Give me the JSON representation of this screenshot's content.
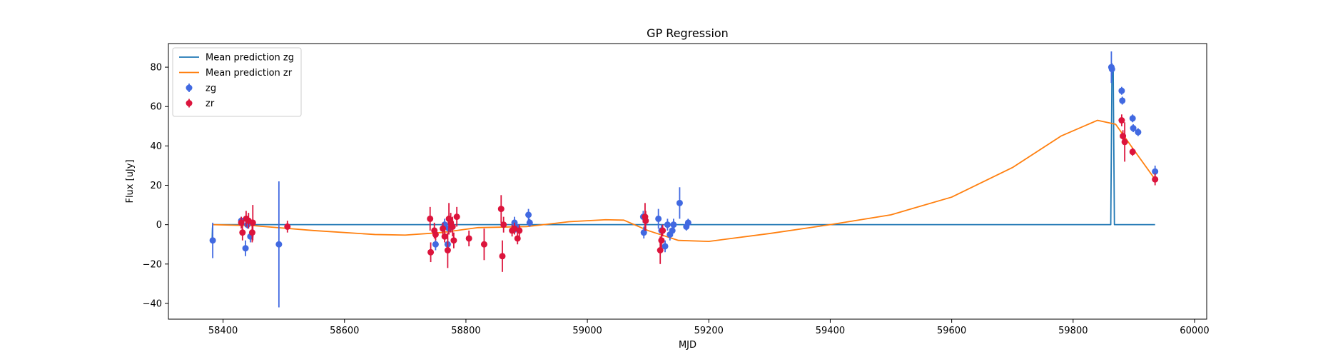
{
  "chart_data": {
    "type": "scatter",
    "title": "GP Regression",
    "xlabel": "MJD",
    "ylabel": "Flux [uJy]",
    "xlim": [
      58310,
      60020
    ],
    "ylim": [
      -48,
      92
    ],
    "xticks": [
      58400,
      58600,
      58800,
      59000,
      59200,
      59400,
      59600,
      59800,
      60000
    ],
    "yticks": [
      -40,
      -20,
      0,
      20,
      40,
      60,
      80
    ],
    "grid": false,
    "legend": {
      "placement": "top-left",
      "entries": [
        {
          "label": "Mean prediction zg",
          "kind": "line",
          "color": "#1f77b4"
        },
        {
          "label": "Mean prediction zr",
          "kind": "line",
          "color": "#ff7f0e"
        },
        {
          "label": "zg",
          "kind": "errorbar",
          "color": "#4169e1"
        },
        {
          "label": "zr",
          "kind": "errorbar",
          "color": "#dc143c"
        }
      ]
    },
    "series": [
      {
        "name": "Mean prediction zg",
        "kind": "line",
        "color": "#1f77b4",
        "x": [
          58382,
          58382.5,
          58383,
          58384,
          59862,
          59864,
          59866,
          59868,
          59935
        ],
        "y": [
          -8,
          -2,
          0,
          0,
          0,
          79,
          80,
          0,
          0
        ]
      },
      {
        "name": "Mean prediction zr",
        "kind": "line",
        "color": "#ff7f0e",
        "x": [
          58382,
          58450,
          58550,
          58650,
          58700,
          58760,
          58820,
          58900,
          58970,
          59030,
          59060,
          59100,
          59150,
          59200,
          59300,
          59400,
          59500,
          59600,
          59700,
          59780,
          59840,
          59870,
          59900,
          59935
        ],
        "y": [
          0,
          -0.5,
          -3,
          -5,
          -5.3,
          -4,
          -1.5,
          -1,
          1.5,
          2.5,
          2.3,
          -3,
          -8,
          -8.5,
          -4.5,
          0,
          5,
          14,
          29,
          45,
          53,
          51,
          38,
          23
        ]
      },
      {
        "name": "zg",
        "kind": "errorbar",
        "color": "#4169e1",
        "points": [
          {
            "x": 58383,
            "y": -8,
            "err": 9
          },
          {
            "x": 58430,
            "y": 2,
            "err": 2
          },
          {
            "x": 58437,
            "y": -12,
            "err": 4
          },
          {
            "x": 58440,
            "y": 0,
            "err": 2
          },
          {
            "x": 58445,
            "y": -6,
            "err": 3
          },
          {
            "x": 58492,
            "y": -10,
            "err": 32
          },
          {
            "x": 58750,
            "y": -10,
            "err": 3
          },
          {
            "x": 58765,
            "y": 0,
            "err": 3
          },
          {
            "x": 58770,
            "y": -10,
            "err": 3
          },
          {
            "x": 58772,
            "y": -2,
            "err": 3
          },
          {
            "x": 58880,
            "y": 1,
            "err": 3
          },
          {
            "x": 58882,
            "y": -1,
            "err": 3
          },
          {
            "x": 58903,
            "y": 5,
            "err": 3
          },
          {
            "x": 58905,
            "y": 1,
            "err": 2
          },
          {
            "x": 59092,
            "y": 4,
            "err": 3
          },
          {
            "x": 59093,
            "y": -4,
            "err": 3
          },
          {
            "x": 59117,
            "y": 3,
            "err": 5
          },
          {
            "x": 59122,
            "y": -3,
            "err": 3
          },
          {
            "x": 59128,
            "y": -11,
            "err": 3
          },
          {
            "x": 59132,
            "y": 0,
            "err": 3
          },
          {
            "x": 59136,
            "y": -5,
            "err": 3
          },
          {
            "x": 59140,
            "y": -3,
            "err": 3
          },
          {
            "x": 59142,
            "y": 0,
            "err": 3
          },
          {
            "x": 59152,
            "y": 11,
            "err": 8
          },
          {
            "x": 59163,
            "y": -1,
            "err": 2
          },
          {
            "x": 59166,
            "y": 1,
            "err": 2
          },
          {
            "x": 59863,
            "y": 80,
            "err": 8
          },
          {
            "x": 59864,
            "y": 79,
            "err": 3
          },
          {
            "x": 59880,
            "y": 68,
            "err": 2
          },
          {
            "x": 59881,
            "y": 63,
            "err": 2
          },
          {
            "x": 59898,
            "y": 54,
            "err": 2
          },
          {
            "x": 59899,
            "y": 49,
            "err": 2
          },
          {
            "x": 59907,
            "y": 47,
            "err": 2
          },
          {
            "x": 59935,
            "y": 27,
            "err": 3
          }
        ]
      },
      {
        "name": "zr",
        "kind": "errorbar",
        "color": "#dc143c",
        "points": [
          {
            "x": 58430,
            "y": 1,
            "err": 3
          },
          {
            "x": 58432,
            "y": -4,
            "err": 4
          },
          {
            "x": 58438,
            "y": 3,
            "err": 4
          },
          {
            "x": 58442,
            "y": 2,
            "err": 4
          },
          {
            "x": 58448,
            "y": -4,
            "err": 5
          },
          {
            "x": 58449,
            "y": 1,
            "err": 9
          },
          {
            "x": 58506,
            "y": -1,
            "err": 3
          },
          {
            "x": 58741,
            "y": 3,
            "err": 6
          },
          {
            "x": 58742,
            "y": -14,
            "err": 5
          },
          {
            "x": 58748,
            "y": -3,
            "err": 4
          },
          {
            "x": 58750,
            "y": -5,
            "err": 3
          },
          {
            "x": 58762,
            "y": -2,
            "err": 3
          },
          {
            "x": 58765,
            "y": -6,
            "err": 3
          },
          {
            "x": 58770,
            "y": -13,
            "err": 9
          },
          {
            "x": 58772,
            "y": 3,
            "err": 8
          },
          {
            "x": 58775,
            "y": 1,
            "err": 5
          },
          {
            "x": 58778,
            "y": -1,
            "err": 5
          },
          {
            "x": 58780,
            "y": -8,
            "err": 4
          },
          {
            "x": 58785,
            "y": 4,
            "err": 5
          },
          {
            "x": 58805,
            "y": -7,
            "err": 4
          },
          {
            "x": 58830,
            "y": -10,
            "err": 8
          },
          {
            "x": 58858,
            "y": 8,
            "err": 7
          },
          {
            "x": 58860,
            "y": -16,
            "err": 8
          },
          {
            "x": 58862,
            "y": 0,
            "err": 4
          },
          {
            "x": 58876,
            "y": -3,
            "err": 3
          },
          {
            "x": 58880,
            "y": -2,
            "err": 3
          },
          {
            "x": 58885,
            "y": -7,
            "err": 3
          },
          {
            "x": 58888,
            "y": -3,
            "err": 3
          },
          {
            "x": 59095,
            "y": 4,
            "err": 7
          },
          {
            "x": 59096,
            "y": 2,
            "err": 5
          },
          {
            "x": 59120,
            "y": -13,
            "err": 7
          },
          {
            "x": 59122,
            "y": -8,
            "err": 5
          },
          {
            "x": 59124,
            "y": -3,
            "err": 3
          },
          {
            "x": 59880,
            "y": 53,
            "err": 3
          },
          {
            "x": 59882,
            "y": 45,
            "err": 3
          },
          {
            "x": 59885,
            "y": 42,
            "err": 10
          },
          {
            "x": 59898,
            "y": 37,
            "err": 2
          },
          {
            "x": 59935,
            "y": 23,
            "err": 3
          }
        ]
      }
    ]
  }
}
